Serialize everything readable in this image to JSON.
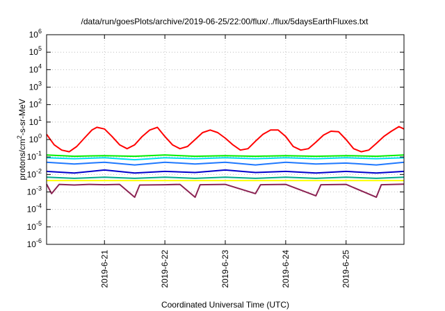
{
  "chart_data": {
    "type": "line",
    "title": "/data/run/goesPlots/archive/2019-06-25/22:00/flux/../flux/5daysEarthFluxes.txt",
    "xlabel": "Coordinated Universal Time (UTC)",
    "ylabel": {
      "base": "protons/cm",
      "sup": "2",
      "rest": "-s-sr-MeV"
    },
    "yscale": "log",
    "ylim": [
      1e-06,
      1000000.0
    ],
    "yticks": [
      {
        "value": 1e-06,
        "base": "10",
        "exp": "-6"
      },
      {
        "value": 1e-05,
        "base": "10",
        "exp": "-5"
      },
      {
        "value": 0.0001,
        "base": "10",
        "exp": "-4"
      },
      {
        "value": 0.001,
        "base": "10",
        "exp": "-3"
      },
      {
        "value": 0.01,
        "base": "10",
        "exp": "-2"
      },
      {
        "value": 0.1,
        "base": "10",
        "exp": "-1"
      },
      {
        "value": 1.0,
        "base": "10",
        "exp": "0"
      },
      {
        "value": 10.0,
        "base": "10",
        "exp": "1"
      },
      {
        "value": 100.0,
        "base": "10",
        "exp": "2"
      },
      {
        "value": 1000.0,
        "base": "10",
        "exp": "3"
      },
      {
        "value": 10000.0,
        "base": "10",
        "exp": "4"
      },
      {
        "value": 100000.0,
        "base": "10",
        "exp": "5"
      },
      {
        "value": 1000000.0,
        "base": "10",
        "exp": "6"
      }
    ],
    "xlim": [
      "2019-06-20T01:00",
      "2019-06-25T23:00"
    ],
    "xticks": [
      {
        "value": "2019-06-21T00:00",
        "label": "2019-6-21"
      },
      {
        "value": "2019-06-22T00:00",
        "label": "2019-6-22"
      },
      {
        "value": "2019-06-23T00:00",
        "label": "2019-6-23"
      },
      {
        "value": "2019-06-24T00:00",
        "label": "2019-6-24"
      },
      {
        "value": "2019-06-25T00:00",
        "label": "2019-6-25"
      }
    ],
    "grid": true,
    "legend": "none",
    "series": [
      {
        "color": "#ff0000",
        "points": [
          [
            "2019-06-20T01:00",
            2.0
          ],
          [
            "2019-06-20T04:00",
            0.5
          ],
          [
            "2019-06-20T07:00",
            0.25
          ],
          [
            "2019-06-20T10:00",
            0.2
          ],
          [
            "2019-06-20T13:00",
            0.4
          ],
          [
            "2019-06-20T16:00",
            1.2
          ],
          [
            "2019-06-20T19:00",
            3.5
          ],
          [
            "2019-06-20T21:00",
            5.0
          ],
          [
            "2019-06-21T00:00",
            4.0
          ],
          [
            "2019-06-21T03:00",
            1.5
          ],
          [
            "2019-06-21T06:00",
            0.5
          ],
          [
            "2019-06-21T09:00",
            0.3
          ],
          [
            "2019-06-21T12:00",
            0.5
          ],
          [
            "2019-06-21T15:00",
            1.5
          ],
          [
            "2019-06-21T18:00",
            3.5
          ],
          [
            "2019-06-21T21:00",
            5.0
          ],
          [
            "2019-06-22T00:00",
            1.5
          ],
          [
            "2019-06-22T03:00",
            0.5
          ],
          [
            "2019-06-22T06:00",
            0.3
          ],
          [
            "2019-06-22T09:00",
            0.4
          ],
          [
            "2019-06-22T12:00",
            1.0
          ],
          [
            "2019-06-22T15:00",
            2.5
          ],
          [
            "2019-06-22T18:00",
            3.5
          ],
          [
            "2019-06-22T21:00",
            2.5
          ],
          [
            "2019-06-23T00:00",
            1.2
          ],
          [
            "2019-06-23T03:00",
            0.5
          ],
          [
            "2019-06-23T06:00",
            0.25
          ],
          [
            "2019-06-23T09:00",
            0.3
          ],
          [
            "2019-06-23T12:00",
            0.8
          ],
          [
            "2019-06-23T15:00",
            2.0
          ],
          [
            "2019-06-23T18:00",
            3.5
          ],
          [
            "2019-06-23T21:00",
            3.5
          ],
          [
            "2019-06-24T00:00",
            1.5
          ],
          [
            "2019-06-24T03:00",
            0.4
          ],
          [
            "2019-06-24T06:00",
            0.25
          ],
          [
            "2019-06-24T09:00",
            0.3
          ],
          [
            "2019-06-24T12:00",
            0.7
          ],
          [
            "2019-06-24T15:00",
            1.8
          ],
          [
            "2019-06-24T18:00",
            3.0
          ],
          [
            "2019-06-24T21:00",
            2.8
          ],
          [
            "2019-06-25T00:00",
            1.0
          ],
          [
            "2019-06-25T03:00",
            0.3
          ],
          [
            "2019-06-25T06:00",
            0.2
          ],
          [
            "2019-06-25T09:00",
            0.25
          ],
          [
            "2019-06-25T12:00",
            0.6
          ],
          [
            "2019-06-25T15:00",
            1.5
          ],
          [
            "2019-06-25T18:00",
            3.0
          ],
          [
            "2019-06-25T21:00",
            5.5
          ],
          [
            "2019-06-25T23:00",
            4.0
          ]
        ]
      },
      {
        "color": "#00ee00",
        "points": [
          [
            "2019-06-20T01:00",
            0.13
          ],
          [
            "2019-06-20T12:00",
            0.11
          ],
          [
            "2019-06-21T00:00",
            0.12
          ],
          [
            "2019-06-21T12:00",
            0.11
          ],
          [
            "2019-06-22T00:00",
            0.13
          ],
          [
            "2019-06-22T12:00",
            0.11
          ],
          [
            "2019-06-23T00:00",
            0.12
          ],
          [
            "2019-06-23T12:00",
            0.11
          ],
          [
            "2019-06-24T00:00",
            0.12
          ],
          [
            "2019-06-24T12:00",
            0.11
          ],
          [
            "2019-06-25T00:00",
            0.12
          ],
          [
            "2019-06-25T12:00",
            0.11
          ],
          [
            "2019-06-25T23:00",
            0.13
          ]
        ]
      },
      {
        "color": "#00ddee",
        "points": [
          [
            "2019-06-20T01:00",
            0.09
          ],
          [
            "2019-06-20T12:00",
            0.08
          ],
          [
            "2019-06-21T00:00",
            0.09
          ],
          [
            "2019-06-21T12:00",
            0.07
          ],
          [
            "2019-06-22T00:00",
            0.09
          ],
          [
            "2019-06-22T12:00",
            0.08
          ],
          [
            "2019-06-23T00:00",
            0.09
          ],
          [
            "2019-06-23T12:00",
            0.08
          ],
          [
            "2019-06-24T00:00",
            0.09
          ],
          [
            "2019-06-24T12:00",
            0.08
          ],
          [
            "2019-06-25T00:00",
            0.09
          ],
          [
            "2019-06-25T12:00",
            0.08
          ],
          [
            "2019-06-25T23:00",
            0.09
          ]
        ]
      },
      {
        "color": "#1e78ff",
        "points": [
          [
            "2019-06-20T01:00",
            0.05
          ],
          [
            "2019-06-20T12:00",
            0.04
          ],
          [
            "2019-06-21T00:00",
            0.05
          ],
          [
            "2019-06-21T12:00",
            0.035
          ],
          [
            "2019-06-22T00:00",
            0.05
          ],
          [
            "2019-06-22T12:00",
            0.04
          ],
          [
            "2019-06-23T00:00",
            0.05
          ],
          [
            "2019-06-23T12:00",
            0.035
          ],
          [
            "2019-06-24T00:00",
            0.05
          ],
          [
            "2019-06-24T12:00",
            0.04
          ],
          [
            "2019-06-25T00:00",
            0.045
          ],
          [
            "2019-06-25T12:00",
            0.035
          ],
          [
            "2019-06-25T23:00",
            0.05
          ]
        ]
      },
      {
        "color": "#0000cc",
        "points": [
          [
            "2019-06-20T01:00",
            0.015
          ],
          [
            "2019-06-20T12:00",
            0.012
          ],
          [
            "2019-06-21T00:00",
            0.018
          ],
          [
            "2019-06-21T12:00",
            0.012
          ],
          [
            "2019-06-22T00:00",
            0.015
          ],
          [
            "2019-06-22T12:00",
            0.013
          ],
          [
            "2019-06-23T00:00",
            0.018
          ],
          [
            "2019-06-23T12:00",
            0.013
          ],
          [
            "2019-06-24T00:00",
            0.015
          ],
          [
            "2019-06-24T12:00",
            0.012
          ],
          [
            "2019-06-25T00:00",
            0.015
          ],
          [
            "2019-06-25T12:00",
            0.012
          ],
          [
            "2019-06-25T23:00",
            0.015
          ]
        ]
      },
      {
        "color": "#00aa88",
        "points": [
          [
            "2019-06-20T01:00",
            0.007
          ],
          [
            "2019-06-20T12:00",
            0.006
          ],
          [
            "2019-06-21T00:00",
            0.007
          ],
          [
            "2019-06-21T12:00",
            0.006
          ],
          [
            "2019-06-22T00:00",
            0.007
          ],
          [
            "2019-06-22T12:00",
            0.006
          ],
          [
            "2019-06-23T00:00",
            0.007
          ],
          [
            "2019-06-23T12:00",
            0.006
          ],
          [
            "2019-06-24T00:00",
            0.007
          ],
          [
            "2019-06-24T12:00",
            0.006
          ],
          [
            "2019-06-25T00:00",
            0.007
          ],
          [
            "2019-06-25T12:00",
            0.006
          ],
          [
            "2019-06-25T23:00",
            0.007
          ]
        ]
      },
      {
        "color": "#ffff00",
        "points": [
          [
            "2019-06-20T01:00",
            0.0045
          ],
          [
            "2019-06-21T00:00",
            0.0045
          ],
          [
            "2019-06-22T00:00",
            0.0045
          ],
          [
            "2019-06-23T00:00",
            0.0045
          ],
          [
            "2019-06-24T00:00",
            0.0045
          ],
          [
            "2019-06-25T00:00",
            0.0045
          ],
          [
            "2019-06-25T23:00",
            0.0045
          ]
        ]
      },
      {
        "color": "#8b2252",
        "points": [
          [
            "2019-06-20T01:00",
            0.0028
          ],
          [
            "2019-06-20T03:00",
            0.0008
          ],
          [
            "2019-06-20T06:00",
            0.0027
          ],
          [
            "2019-06-20T12:00",
            0.0025
          ],
          [
            "2019-06-20T18:00",
            0.0027
          ],
          [
            "2019-06-21T00:00",
            0.0026
          ],
          [
            "2019-06-21T06:00",
            0.0027
          ],
          [
            "2019-06-21T12:00",
            0.0005
          ],
          [
            "2019-06-21T14:00",
            0.0025
          ],
          [
            "2019-06-22T00:00",
            0.0026
          ],
          [
            "2019-06-22T06:00",
            0.0027
          ],
          [
            "2019-06-22T12:00",
            0.0005
          ],
          [
            "2019-06-22T14:00",
            0.0026
          ],
          [
            "2019-06-23T00:00",
            0.0027
          ],
          [
            "2019-06-23T12:00",
            0.0008
          ],
          [
            "2019-06-23T14:00",
            0.0026
          ],
          [
            "2019-06-24T00:00",
            0.0027
          ],
          [
            "2019-06-24T12:00",
            0.0006
          ],
          [
            "2019-06-24T14:00",
            0.0026
          ],
          [
            "2019-06-25T00:00",
            0.0027
          ],
          [
            "2019-06-25T12:00",
            0.0005
          ],
          [
            "2019-06-25T14:00",
            0.0026
          ],
          [
            "2019-06-25T23:00",
            0.0028
          ]
        ]
      }
    ]
  }
}
